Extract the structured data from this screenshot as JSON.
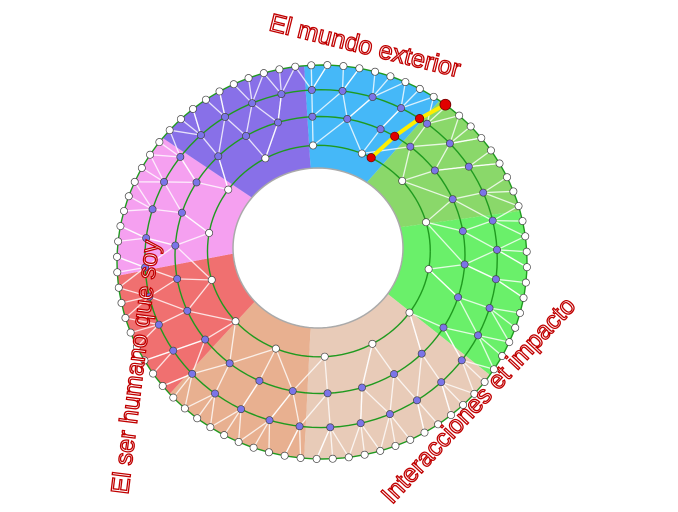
{
  "labels": {
    "top": "El mundo exterior",
    "left": "El ser humano que soy",
    "bottom_right": "Interacciones et impacto"
  },
  "colors": {
    "label_stroke": "#c00000",
    "ring_line": "#1f9a1f",
    "mesh_line": "#ffffff",
    "outer_dot": "#ffffff",
    "inner_dot": "#7b74e8",
    "highlight_path": "#ffee00",
    "highlight_dot": "#e00000"
  },
  "sectors": [
    {
      "color": "#45b8f8"
    },
    {
      "color": "#8ad86a"
    },
    {
      "color": "#6af06a"
    },
    {
      "color": "#e8cbb8"
    },
    {
      "color": "#e8b090"
    },
    {
      "color": "#f07070"
    },
    {
      "color": "#f5a0f0"
    },
    {
      "color": "#8870e8"
    }
  ]
}
